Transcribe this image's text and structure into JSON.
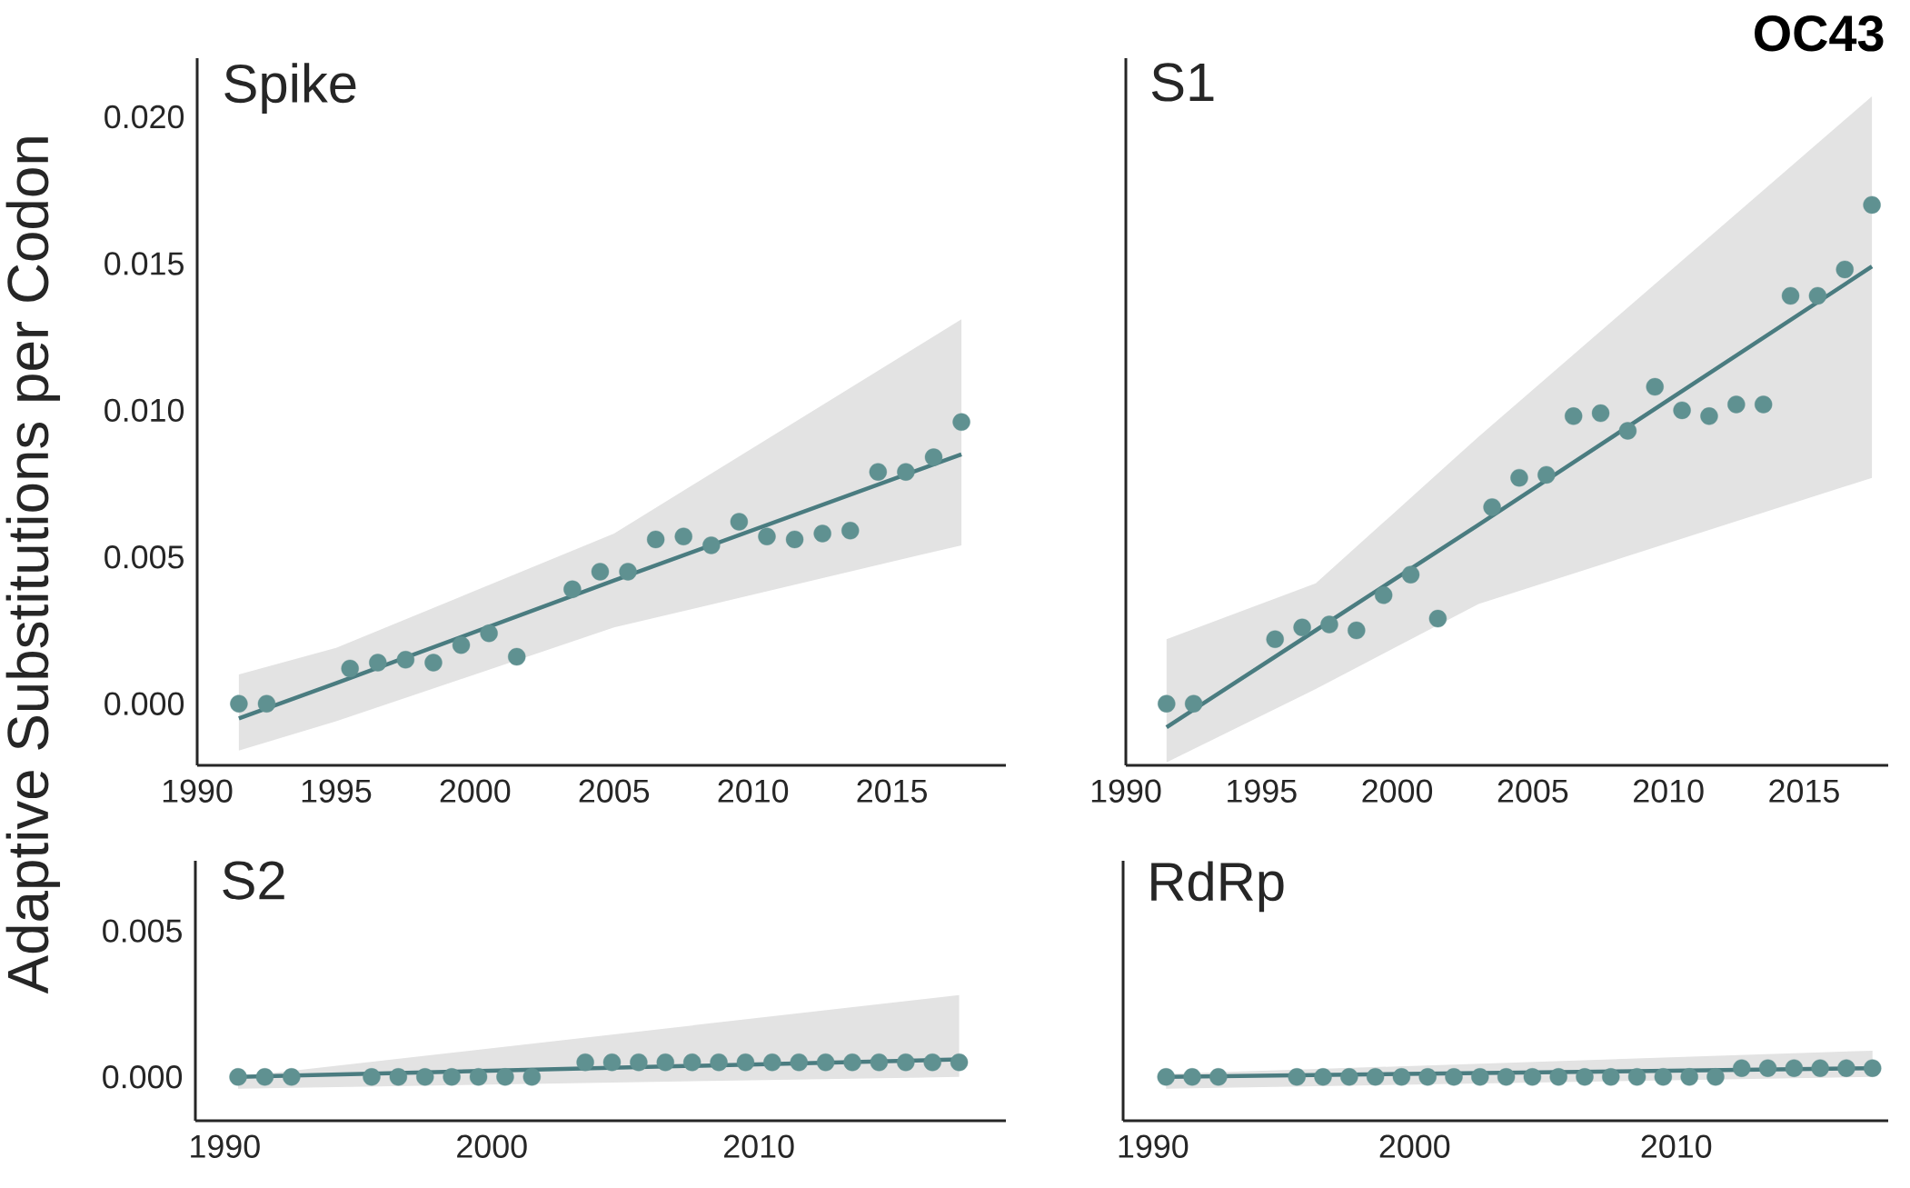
{
  "chart_data": [
    {
      "type": "scatter",
      "title": "Spike",
      "ylabel": "Adaptive Substitutions per Codon",
      "xlim": [
        1990,
        2019.1
      ],
      "ylim": [
        -0.0021,
        0.022
      ],
      "xticks": [
        1990,
        1995,
        2000,
        2005,
        2010,
        2015
      ],
      "yticks": [
        {
          "value": 0,
          "label": "0.000"
        },
        {
          "value": 0.005,
          "label": "0.005"
        },
        {
          "value": 0.01,
          "label": "0.010"
        },
        {
          "value": 0.015,
          "label": "0.015"
        },
        {
          "value": 0.02,
          "label": "0.020"
        }
      ],
      "series": [
        {
          "marker": "circle",
          "color": "#5f9191",
          "x": [
            1991.5,
            1992.5,
            1995.5,
            1996.5,
            1997.5,
            1998.5,
            1999.5,
            2000.5,
            2001.5,
            2003.5,
            2004.5,
            2005.5,
            2006.5,
            2007.5,
            2008.5,
            2009.5,
            2010.5,
            2011.5,
            2012.5,
            2013.5,
            2014.5,
            2015.5,
            2016.5,
            2017.5
          ],
          "values": [
            0,
            0,
            0.0012,
            0.0014,
            0.0015,
            0.0014,
            0.002,
            0.0024,
            0.0016,
            0.0039,
            0.0045,
            0.0045,
            0.0056,
            0.0057,
            0.0054,
            0.0062,
            0.0057,
            0.0056,
            0.0058,
            0.0059,
            0.0079,
            0.0079,
            0.0084,
            0.0096
          ]
        },
        {
          "type": "line",
          "color": "#4a7c80",
          "line_style": "solid",
          "x": [
            1991.5,
            1995,
            2005,
            2017.5
          ],
          "values": [
            -0.0005,
            0.0007,
            0.0042,
            0.0085
          ],
          "lower": [
            -0.0016,
            -0.0006,
            0.0026,
            0.0054
          ],
          "upper": [
            0.001,
            0.0019,
            0.0058,
            0.0131
          ]
        }
      ]
    },
    {
      "type": "scatter",
      "title": "S1",
      "annotations": [
        "**OC43**"
      ],
      "xlim": [
        1990,
        2018.1
      ],
      "ylim": [
        -0.0021,
        0.022
      ],
      "xticks": [
        1990,
        1995,
        2000,
        2005,
        2010,
        2015
      ],
      "tick_labels": "x",
      "series": [
        {
          "marker": "circle",
          "color": "#5f9191",
          "x": [
            1991.5,
            1992.5,
            1995.5,
            1996.5,
            1997.5,
            1998.5,
            1999.5,
            2000.5,
            2001.5,
            2003.5,
            2004.5,
            2005.5,
            2006.5,
            2007.5,
            2008.5,
            2009.5,
            2010.5,
            2011.5,
            2012.5,
            2013.5,
            2014.5,
            2015.5,
            2016.5,
            2017.5
          ],
          "values": [
            0,
            0,
            0.0022,
            0.0026,
            0.0027,
            0.0025,
            0.0037,
            0.0044,
            0.0029,
            0.0067,
            0.0077,
            0.0078,
            0.0098,
            0.0099,
            0.0093,
            0.0108,
            0.01,
            0.0098,
            0.0102,
            0.0102,
            0.0139,
            0.0139,
            0.0148,
            0.017
          ]
        },
        {
          "type": "line",
          "color": "#4a7c80",
          "line_style": "solid",
          "x": [
            1991.5,
            1997,
            2003,
            2017.5
          ],
          "values": [
            -0.0008,
            0.0025,
            0.0061,
            0.0149
          ],
          "lower": [
            -0.002,
            0.0005,
            0.0034,
            0.0077
          ],
          "upper": [
            0.0022,
            0.0041,
            0.0091,
            0.0207
          ]
        }
      ]
    },
    {
      "type": "scatter",
      "title": "S2",
      "xlim": [
        1988.9,
        2019.25
      ],
      "ylim": [
        -0.0015,
        0.0074
      ],
      "xticks": [
        1990,
        2000,
        2010
      ],
      "yticks": [
        {
          "value": 0,
          "label": "0.000"
        },
        {
          "value": 0.005,
          "label": "0.005"
        }
      ],
      "series": [
        {
          "marker": "circle",
          "color": "#5f9191",
          "x": [
            1990.5,
            1991.5,
            1992.5,
            1995.5,
            1996.5,
            1997.5,
            1998.5,
            1999.5,
            2000.5,
            2001.5,
            2003.5,
            2004.5,
            2005.5,
            2006.5,
            2007.5,
            2008.5,
            2009.5,
            2010.5,
            2011.5,
            2012.5,
            2013.5,
            2014.5,
            2015.5,
            2016.5,
            2017.5
          ],
          "values": [
            0,
            0,
            0,
            0,
            0,
            0,
            0,
            0,
            0,
            0,
            0.0005,
            0.0005,
            0.0005,
            0.0005,
            0.0005,
            0.0005,
            0.0005,
            0.0005,
            0.0005,
            0.0005,
            0.0005,
            0.0005,
            0.0005,
            0.0005,
            0.0005
          ]
        },
        {
          "type": "line",
          "color": "#4a7c80",
          "line_style": "solid",
          "x": [
            1990.5,
            2017.5
          ],
          "values": [
            0,
            0.0006
          ],
          "lower": [
            -0.0004,
            0
          ],
          "upper": [
            0,
            0.0028
          ]
        }
      ]
    },
    {
      "type": "scatter",
      "title": "RdRp",
      "xlim": [
        1988.86,
        2018.1
      ],
      "ylim": [
        -0.0015,
        0.0074
      ],
      "xticks": [
        1990,
        2000,
        2010
      ],
      "tick_labels": "x",
      "series": [
        {
          "marker": "circle",
          "color": "#5f9191",
          "x": [
            1990.5,
            1991.5,
            1992.5,
            1995.5,
            1996.5,
            1997.5,
            1998.5,
            1999.5,
            2000.5,
            2001.5,
            2002.5,
            2003.5,
            2004.5,
            2005.5,
            2006.5,
            2007.5,
            2008.5,
            2009.5,
            2010.5,
            2011.5,
            2012.5,
            2013.5,
            2014.5,
            2015.5,
            2016.5,
            2017.5
          ],
          "values": [
            0,
            0,
            0,
            0,
            0,
            0,
            0,
            0,
            0,
            0,
            0,
            0,
            0,
            0,
            0,
            0,
            0,
            0,
            0,
            0,
            0.0003,
            0.0003,
            0.0003,
            0.0003,
            0.0003,
            0.0003
          ]
        },
        {
          "type": "line",
          "color": "#4a7c80",
          "line_style": "solid",
          "x": [
            1990.5,
            2017.5
          ],
          "values": [
            0,
            0.0003
          ],
          "lower": [
            -0.0004,
            0
          ],
          "upper": [
            0.0001,
            0.0009
          ]
        }
      ]
    }
  ]
}
